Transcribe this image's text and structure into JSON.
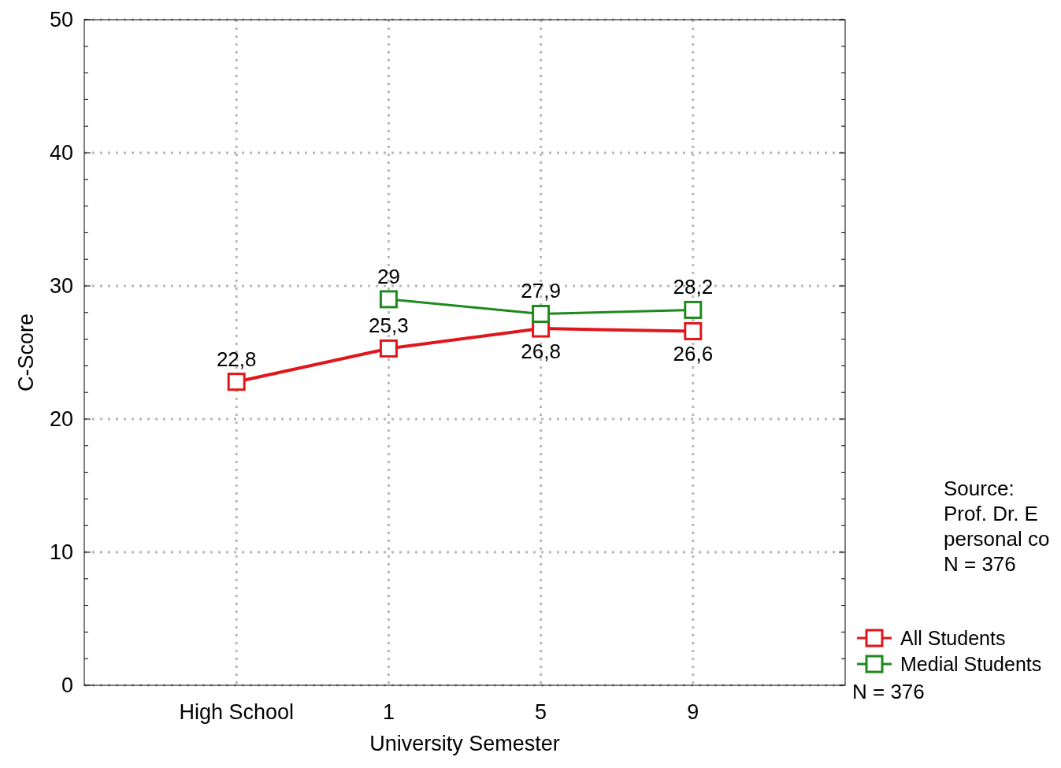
{
  "chart_data": {
    "type": "line",
    "xlabel": "University Semester",
    "ylabel": "C-Score",
    "categories": [
      "High School",
      "1",
      "5",
      "9"
    ],
    "series": [
      {
        "name": "All Students",
        "color": "#e0161b",
        "values": [
          22.8,
          25.3,
          26.8,
          26.6
        ],
        "value_labels": [
          "22,8",
          "25,3",
          "26,8",
          "26,6"
        ]
      },
      {
        "name": "Medial Students",
        "color": "#1e8a1e",
        "values": [
          null,
          29,
          27.9,
          28.2
        ],
        "value_labels": [
          null,
          "29",
          "27,9",
          "28,2"
        ]
      }
    ],
    "ylim": [
      0,
      50
    ],
    "yticks": [
      0,
      {
        "value": 2,
        "label": null
      },
      {
        "value": 4,
        "label": null
      },
      {
        "value": 6,
        "label": null
      },
      {
        "value": 8,
        "label": null
      },
      10,
      {
        "value": 12,
        "label": null
      },
      {
        "value": 14,
        "label": null
      },
      {
        "value": 16,
        "label": null
      },
      {
        "value": 18,
        "label": null
      },
      20,
      {
        "value": 22,
        "label": null
      },
      {
        "value": 24,
        "label": null
      },
      {
        "value": 26,
        "label": null
      },
      {
        "value": 28,
        "label": null
      },
      30,
      {
        "value": 32,
        "label": null
      },
      {
        "value": 34,
        "label": null
      },
      {
        "value": 36,
        "label": null
      },
      {
        "value": 38,
        "label": null
      },
      40,
      {
        "value": 42,
        "label": null
      },
      {
        "value": 44,
        "label": null
      },
      {
        "value": 46,
        "label": null
      },
      {
        "value": 48,
        "label": null
      },
      50
    ],
    "grid": true,
    "legend": "bottom right",
    "marker": "square",
    "line_style": "solid",
    "annotations": [
      "Source:",
      "Prof. Dr. E",
      "personal co",
      "N = 376",
      "N = 376"
    ]
  }
}
